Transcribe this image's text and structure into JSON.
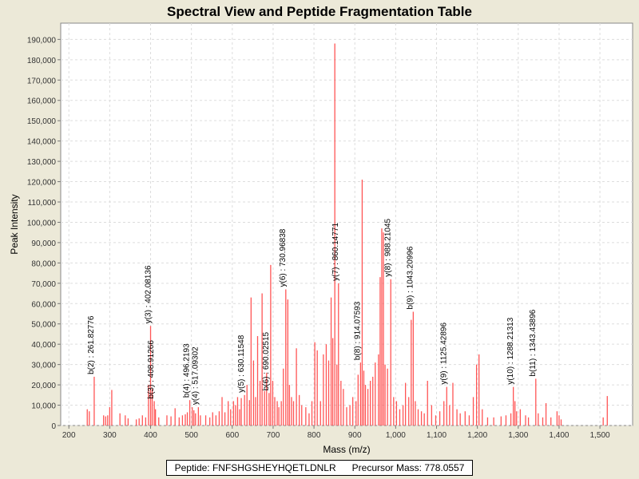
{
  "chart_data": {
    "type": "bar",
    "title": "Spectral View and Peptide Fragmentation Table",
    "xlabel": "Mass (m/z)",
    "ylabel": "Peak Intensity",
    "xlim": [
      180,
      1580
    ],
    "ylim": [
      0,
      198000
    ],
    "x_ticks": [
      200,
      300,
      400,
      500,
      600,
      700,
      800,
      900,
      1000,
      1100,
      1200,
      1300,
      1400,
      1500
    ],
    "x_tick_labels": [
      "200",
      "300",
      "400",
      "500",
      "600",
      "700",
      "800",
      "900",
      "1,000",
      "1,100",
      "1,200",
      "1,300",
      "1,400",
      "1,500"
    ],
    "y_ticks": [
      0,
      10000,
      20000,
      30000,
      40000,
      50000,
      60000,
      70000,
      80000,
      90000,
      100000,
      110000,
      120000,
      130000,
      140000,
      150000,
      160000,
      170000,
      180000,
      190000
    ],
    "y_tick_labels": [
      "0",
      "10,000",
      "20,000",
      "30,000",
      "40,000",
      "50,000",
      "60,000",
      "70,000",
      "80,000",
      "90,000",
      "100,000",
      "110,000",
      "120,000",
      "130,000",
      "140,000",
      "150,000",
      "160,000",
      "170,000",
      "180,000",
      "190,000"
    ],
    "grid": true,
    "bar_color": "#ff5555",
    "peaks": [
      [
        245,
        8000
      ],
      [
        250,
        7000
      ],
      [
        262,
        24000
      ],
      [
        285,
        5000
      ],
      [
        290,
        4500
      ],
      [
        295,
        5000
      ],
      [
        300,
        9000
      ],
      [
        305,
        17500
      ],
      [
        325,
        6000
      ],
      [
        338,
        5000
      ],
      [
        345,
        3500
      ],
      [
        365,
        3000
      ],
      [
        372,
        3500
      ],
      [
        380,
        5000
      ],
      [
        388,
        4000
      ],
      [
        395,
        20000
      ],
      [
        400,
        49000
      ],
      [
        404,
        18000
      ],
      [
        409,
        12000
      ],
      [
        412,
        8000
      ],
      [
        420,
        4000
      ],
      [
        440,
        5000
      ],
      [
        450,
        4500
      ],
      [
        460,
        8500
      ],
      [
        470,
        4000
      ],
      [
        478,
        5000
      ],
      [
        485,
        5500
      ],
      [
        490,
        6500
      ],
      [
        496,
        12500
      ],
      [
        502,
        9000
      ],
      [
        506,
        7500
      ],
      [
        510,
        6000
      ],
      [
        517,
        9000
      ],
      [
        522,
        5000
      ],
      [
        535,
        5000
      ],
      [
        545,
        4000
      ],
      [
        552,
        6500
      ],
      [
        560,
        5000
      ],
      [
        568,
        7000
      ],
      [
        575,
        14000
      ],
      [
        582,
        6500
      ],
      [
        590,
        12000
      ],
      [
        596,
        8000
      ],
      [
        603,
        12000
      ],
      [
        608,
        10000
      ],
      [
        613,
        14000
      ],
      [
        618,
        8000
      ],
      [
        622,
        13500
      ],
      [
        630,
        15000
      ],
      [
        636,
        20000
      ],
      [
        642,
        12500
      ],
      [
        646,
        63000
      ],
      [
        652,
        32000
      ],
      [
        657,
        14000
      ],
      [
        662,
        44000
      ],
      [
        668,
        22000
      ],
      [
        673,
        65000
      ],
      [
        679,
        17000
      ],
      [
        684,
        26000
      ],
      [
        690,
        16000
      ],
      [
        694,
        79000
      ],
      [
        699,
        22000
      ],
      [
        704,
        14000
      ],
      [
        710,
        12000
      ],
      [
        714,
        9000
      ],
      [
        720,
        12000
      ],
      [
        725,
        28000
      ],
      [
        731,
        67000
      ],
      [
        736,
        62000
      ],
      [
        740,
        20000
      ],
      [
        745,
        14000
      ],
      [
        750,
        12000
      ],
      [
        757,
        38000
      ],
      [
        764,
        15000
      ],
      [
        770,
        10000
      ],
      [
        780,
        9000
      ],
      [
        788,
        6000
      ],
      [
        795,
        12000
      ],
      [
        802,
        41000
      ],
      [
        808,
        37000
      ],
      [
        816,
        12000
      ],
      [
        823,
        35000
      ],
      [
        830,
        40000
      ],
      [
        836,
        32000
      ],
      [
        842,
        63000
      ],
      [
        846,
        43000
      ],
      [
        851,
        188000
      ],
      [
        856,
        30000
      ],
      [
        860,
        70000
      ],
      [
        866,
        22000
      ],
      [
        872,
        18000
      ],
      [
        880,
        9000
      ],
      [
        888,
        10000
      ],
      [
        895,
        14000
      ],
      [
        903,
        12000
      ],
      [
        908,
        25000
      ],
      [
        914,
        31000
      ],
      [
        918,
        121000
      ],
      [
        922,
        27000
      ],
      [
        926,
        20000
      ],
      [
        932,
        18000
      ],
      [
        938,
        22000
      ],
      [
        944,
        24000
      ],
      [
        950,
        31000
      ],
      [
        958,
        35000
      ],
      [
        962,
        73000
      ],
      [
        966,
        97000
      ],
      [
        970,
        95000
      ],
      [
        974,
        30000
      ],
      [
        980,
        28000
      ],
      [
        988,
        72000
      ],
      [
        995,
        14000
      ],
      [
        1002,
        12000
      ],
      [
        1010,
        8000
      ],
      [
        1018,
        10000
      ],
      [
        1024,
        21000
      ],
      [
        1032,
        14000
      ],
      [
        1038,
        52000
      ],
      [
        1043,
        56000
      ],
      [
        1048,
        12000
      ],
      [
        1055,
        8000
      ],
      [
        1063,
        7000
      ],
      [
        1070,
        6000
      ],
      [
        1078,
        22000
      ],
      [
        1088,
        10000
      ],
      [
        1098,
        5000
      ],
      [
        1108,
        7000
      ],
      [
        1118,
        12000
      ],
      [
        1125,
        19000
      ],
      [
        1132,
        10000
      ],
      [
        1140,
        21000
      ],
      [
        1150,
        8000
      ],
      [
        1158,
        6000
      ],
      [
        1170,
        7000
      ],
      [
        1180,
        5000
      ],
      [
        1190,
        14000
      ],
      [
        1198,
        30000
      ],
      [
        1204,
        35000
      ],
      [
        1212,
        8000
      ],
      [
        1225,
        4000
      ],
      [
        1240,
        4000
      ],
      [
        1258,
        4500
      ],
      [
        1270,
        5000
      ],
      [
        1282,
        6000
      ],
      [
        1288,
        19000
      ],
      [
        1292,
        12000
      ],
      [
        1296,
        7000
      ],
      [
        1305,
        8000
      ],
      [
        1318,
        5000
      ],
      [
        1325,
        4000
      ],
      [
        1343,
        23000
      ],
      [
        1349,
        6000
      ],
      [
        1360,
        4000
      ],
      [
        1368,
        11000
      ],
      [
        1380,
        4000
      ],
      [
        1395,
        7000
      ],
      [
        1400,
        5000
      ],
      [
        1405,
        3000
      ],
      [
        1508,
        4000
      ],
      [
        1518,
        14500
      ]
    ],
    "annotations": [
      {
        "x": 261.82776,
        "y": 24000,
        "label": "b(2) : 261.82776"
      },
      {
        "x": 402.08136,
        "y": 49000,
        "label": "y(3) : 402.08136"
      },
      {
        "x": 408.91266,
        "y": 12000,
        "label": "b(3) : 408.91266"
      },
      {
        "x": 496.2193,
        "y": 12500,
        "label": "b(4) : 496.2193"
      },
      {
        "x": 517.09302,
        "y": 9000,
        "label": "y(4) : 517.09302"
      },
      {
        "x": 630.11548,
        "y": 15000,
        "label": "y(5) : 630.11548"
      },
      {
        "x": 690.02515,
        "y": 16000,
        "label": "b(6) : 690.02515"
      },
      {
        "x": 730.96838,
        "y": 67000,
        "label": "y(6) : 730.96838"
      },
      {
        "x": 860.14771,
        "y": 70000,
        "label": "y(7) : 860.14771"
      },
      {
        "x": 914.07593,
        "y": 31000,
        "label": "b(8) : 914.07593"
      },
      {
        "x": 988.21045,
        "y": 72000,
        "label": "y(8) : 988.21045"
      },
      {
        "x": 1043.20996,
        "y": 56000,
        "label": "b(9) : 1043.20996"
      },
      {
        "x": 1125.42896,
        "y": 19000,
        "label": "y(9) : 1125.42896"
      },
      {
        "x": 1288.21313,
        "y": 19000,
        "label": "y(10) : 1288.21313"
      },
      {
        "x": 1343.43896,
        "y": 23000,
        "label": "b(11) : 1343.43896"
      }
    ]
  },
  "footer": {
    "peptide": "Peptide: FNFSHGSHEYHQETLDNLR",
    "precursor": "Precursor Mass: 778.0557"
  }
}
